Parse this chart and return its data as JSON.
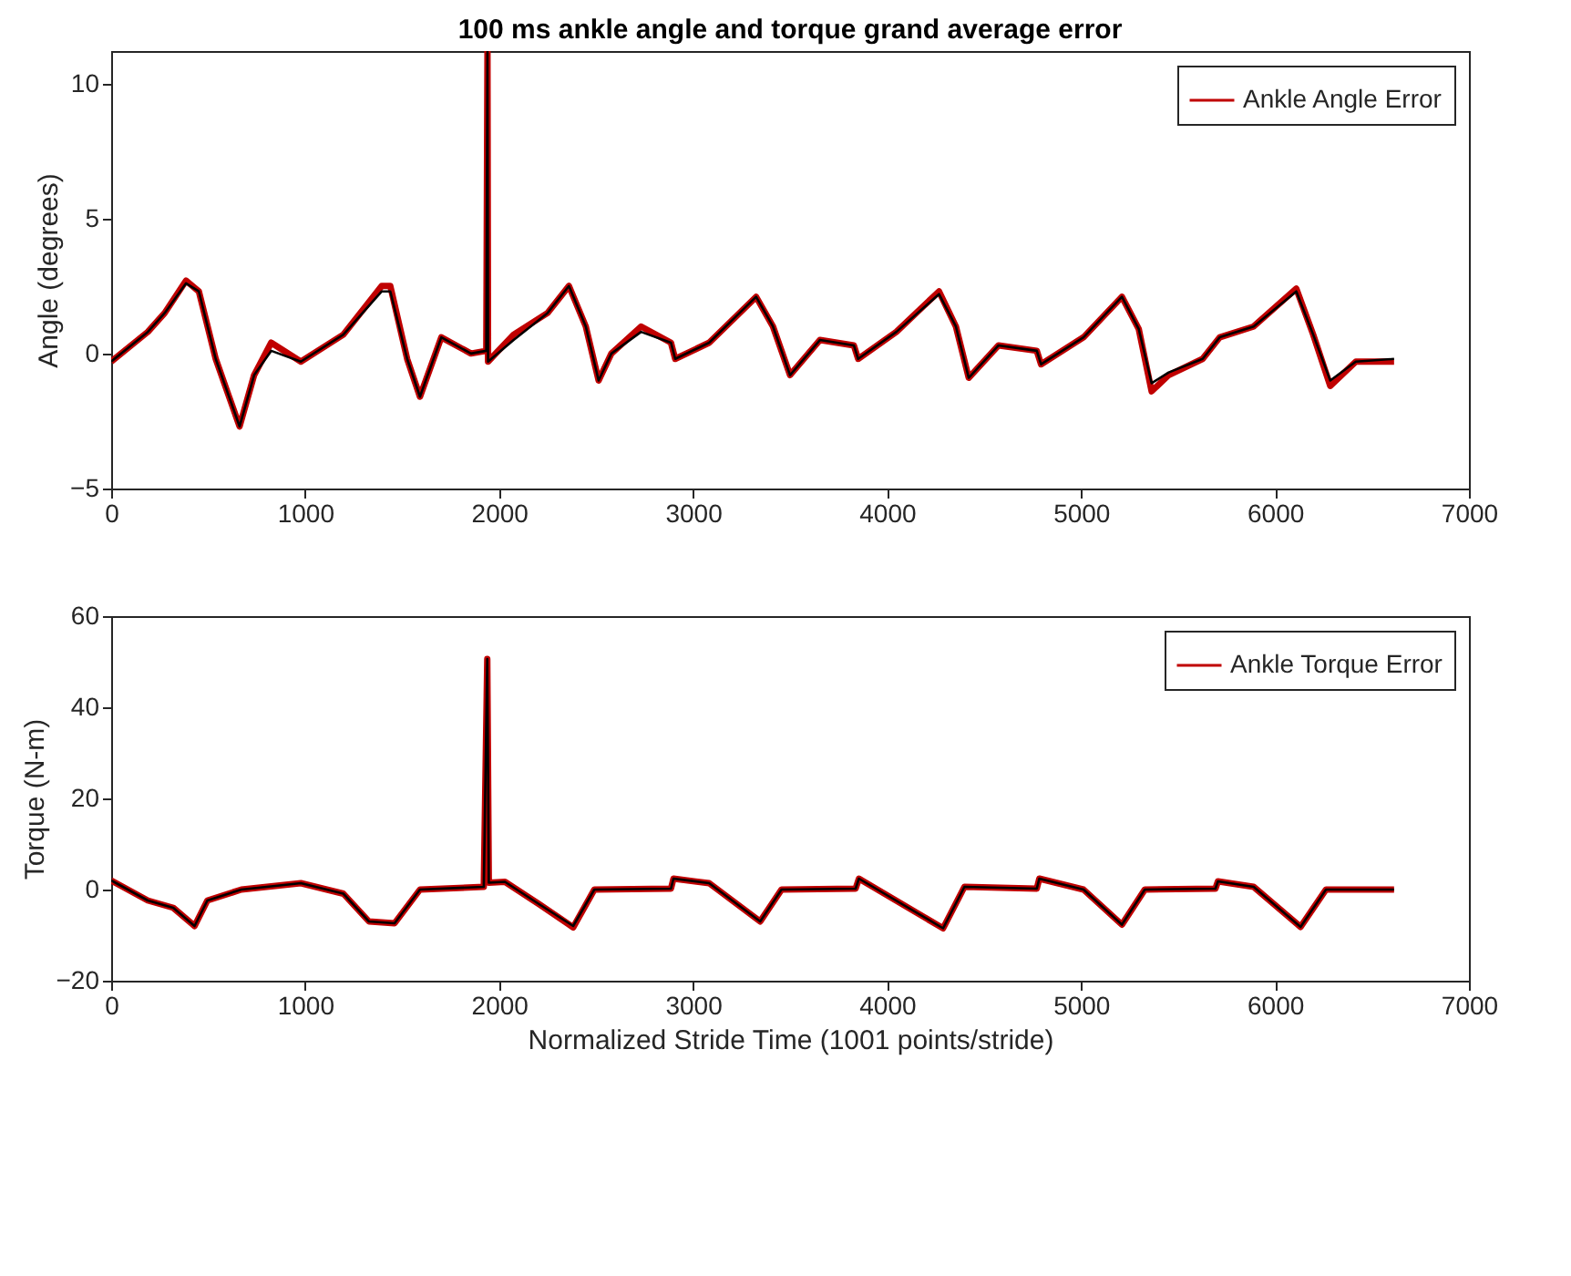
{
  "chart_data": [
    {
      "type": "line",
      "title": "100 ms ankle angle and torque grand average error",
      "ylabel": "Angle (degrees)",
      "legend": "top right",
      "xlim": [
        0,
        7000
      ],
      "xticks": [
        0,
        1000,
        2000,
        3000,
        4000,
        5000,
        6000,
        7000
      ],
      "ylim": [
        -5,
        11.2
      ],
      "yticks": [
        -5,
        0,
        5,
        10
      ],
      "x": [
        0,
        189,
        276,
        386,
        452,
        539,
        583,
        662,
        737,
        825,
        978,
        1197,
        1395,
        1439,
        1526,
        1592,
        1702,
        1855,
        1934,
        1940,
        1943,
        2075,
        2250,
        2360,
        2447,
        2513,
        2579,
        2732,
        2886,
        2908,
        3083,
        3325,
        3412,
        3500,
        3654,
        3829,
        3851,
        4048,
        4268,
        4355,
        4421,
        4575,
        4772,
        4794,
        5013,
        5211,
        5298,
        5364,
        5452,
        5627,
        5715,
        5890,
        6110,
        6197,
        6285,
        6417,
        6614
      ],
      "series": [
        {
          "name": "Ankle Angle Error",
          "color": "#c00000",
          "values": [
            -0.3,
            0.8,
            1.5,
            2.7,
            2.3,
            -0.2,
            -1.1,
            -2.7,
            -0.8,
            0.4,
            -0.3,
            0.7,
            2.5,
            2.5,
            -0.2,
            -1.6,
            0.6,
            0,
            0.1,
            11.2,
            -0.3,
            0.7,
            1.5,
            2.5,
            1.0,
            -1.0,
            0,
            1.0,
            0.4,
            -0.2,
            0.4,
            2.1,
            1.0,
            -0.8,
            0.5,
            0.3,
            -0.2,
            0.8,
            2.3,
            1.0,
            -0.9,
            0.3,
            0.1,
            -0.4,
            0.6,
            2.1,
            0.9,
            -1.4,
            -0.8,
            -0.2,
            0.6,
            1.0,
            2.4,
            0.7,
            -1.2,
            -0.3,
            -0.3
          ]
        },
        {
          "color": "#000000",
          "values": [
            -0.3,
            0.8,
            1.5,
            2.6,
            2.3,
            -0.2,
            -1.1,
            -2.7,
            -0.8,
            0.1,
            -0.3,
            0.7,
            2.3,
            2.3,
            -0.2,
            -1.6,
            0.6,
            0,
            0.1,
            11.2,
            -0.3,
            0.5,
            1.5,
            2.5,
            1.0,
            -1.0,
            0,
            0.8,
            0.4,
            -0.2,
            0.4,
            2.1,
            1.0,
            -0.8,
            0.5,
            0.3,
            -0.2,
            0.8,
            2.2,
            1.0,
            -0.9,
            0.3,
            0.1,
            -0.4,
            0.6,
            2.1,
            0.9,
            -1.1,
            -0.7,
            -0.2,
            0.6,
            1.0,
            2.3,
            0.7,
            -1.0,
            -0.3,
            -0.2
          ]
        }
      ]
    },
    {
      "type": "line",
      "xlabel": "Normalized Stride Time (1001 points/stride)",
      "ylabel": "Torque (N-m)",
      "legend": "top right",
      "xlim": [
        0,
        7000
      ],
      "xticks": [
        0,
        1000,
        2000,
        3000,
        4000,
        5000,
        6000,
        7000
      ],
      "ylim": [
        -20,
        60
      ],
      "yticks": [
        -20,
        0,
        20,
        40,
        60
      ],
      "x": [
        0,
        189,
        320,
        430,
        496,
        671,
        978,
        1197,
        1329,
        1461,
        1592,
        1921,
        1939,
        1947,
        2030,
        2206,
        2382,
        2491,
        2886,
        2899,
        3083,
        3346,
        3456,
        3838,
        3855,
        4289,
        4399,
        4772,
        4785,
        5013,
        5211,
        5329,
        5693,
        5706,
        5890,
        6132,
        6263,
        6614
      ],
      "series": [
        {
          "name": "Ankle Torque Error",
          "color": "#c00000",
          "values": [
            2,
            -2.4,
            -4,
            -8,
            -2.4,
            0,
            1.4,
            -0.9,
            -7,
            -7.4,
            0,
            0.6,
            50.6,
            1.5,
            1.7,
            -3.2,
            -8.3,
            0,
            0.2,
            2.4,
            1.4,
            -7,
            0,
            0.2,
            2.4,
            -8.5,
            0.6,
            0.2,
            2.4,
            0,
            -7.7,
            0,
            0.2,
            1.8,
            0.6,
            -8.2,
            0,
            0
          ]
        },
        {
          "color": "#000000",
          "values": [
            2,
            -2.4,
            -4,
            -8,
            -2.4,
            0,
            1.4,
            -0.9,
            -7,
            -7.4,
            0,
            0.6,
            50.6,
            1.5,
            1.7,
            -3.2,
            -8,
            0,
            0.2,
            2.4,
            1.4,
            -7,
            0,
            0.2,
            2.4,
            -8.5,
            0.6,
            0.2,
            2.4,
            0,
            -7.7,
            0,
            0.2,
            1.8,
            0.6,
            -8.2,
            0,
            0
          ]
        }
      ]
    }
  ]
}
